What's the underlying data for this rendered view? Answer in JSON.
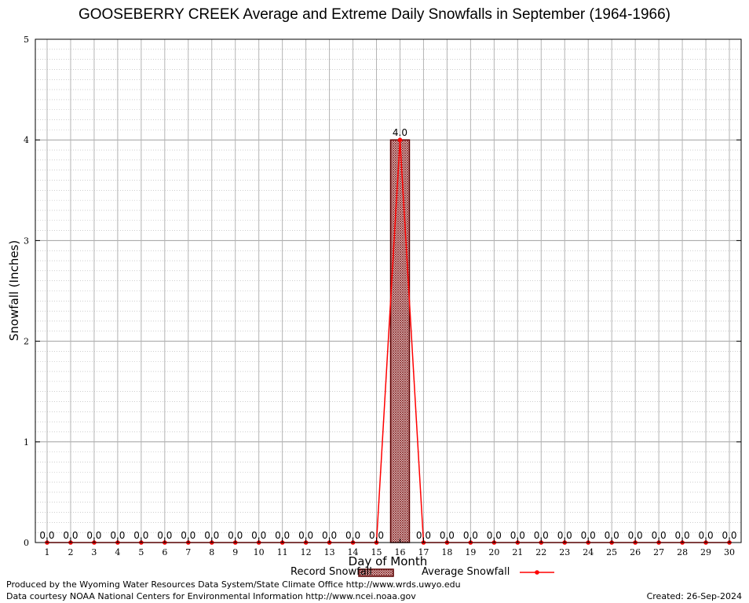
{
  "chart_data": {
    "type": "bar",
    "title": "GOOSEBERRY CREEK Average and Extreme Daily Snowfalls in September (1964-1966)",
    "xlabel": "Day of Month",
    "ylabel": "Snowfall (Inches)",
    "ylim": [
      0,
      5
    ],
    "yticks": [
      "0",
      "1",
      "2",
      "3",
      "4",
      "5"
    ],
    "categories": [
      "1",
      "2",
      "3",
      "4",
      "5",
      "6",
      "7",
      "8",
      "9",
      "10",
      "11",
      "12",
      "13",
      "14",
      "15",
      "16",
      "17",
      "18",
      "19",
      "20",
      "21",
      "22",
      "23",
      "24",
      "25",
      "26",
      "27",
      "28",
      "29",
      "30"
    ],
    "series": [
      {
        "name": "Record Snowfall",
        "kind": "bar",
        "values": [
          0,
          0,
          0,
          0,
          0,
          0,
          0,
          0,
          0,
          0,
          0,
          0,
          0,
          0,
          0,
          4.0,
          0,
          0,
          0,
          0,
          0,
          0,
          0,
          0,
          0,
          0,
          0,
          0,
          0,
          0
        ]
      },
      {
        "name": "Average Snowfall",
        "kind": "line",
        "values": [
          0,
          0,
          0,
          0,
          0,
          0,
          0,
          0,
          0,
          0,
          0,
          0,
          0,
          0,
          0,
          4.0,
          0,
          0,
          0,
          0,
          0,
          0,
          0,
          0,
          0,
          0,
          0,
          0,
          0,
          0
        ]
      }
    ],
    "data_labels": [
      "0.0",
      "0.0",
      "0.0",
      "0.0",
      "0.0",
      "0.0",
      "0.0",
      "0.0",
      "0.0",
      "0.0",
      "0.0",
      "0.0",
      "0.0",
      "0.0",
      "0.0",
      "4.0",
      "0.0",
      "0.0",
      "0.0",
      "0.0",
      "0.0",
      "0.0",
      "0.0",
      "0.0",
      "0.0",
      "0.0",
      "0.0",
      "0.0",
      "0.0",
      "0.0"
    ],
    "grid": true,
    "legend_position": "bottom-center",
    "colors": {
      "bar_fill": "#a05a5a",
      "bar_edge": "#5a0000",
      "line": "#ff0000",
      "grid": "#a0a0a0"
    }
  },
  "footer": {
    "produced_by": "Produced by the Wyoming Water Resources Data System/State Climate Office http://www.wrds.uwyo.edu",
    "data_courtesy": "Data courtesy NOAA National Centers for Environmental Information http://www.ncei.noaa.gov",
    "created": "Created:  26-Sep-2024"
  }
}
